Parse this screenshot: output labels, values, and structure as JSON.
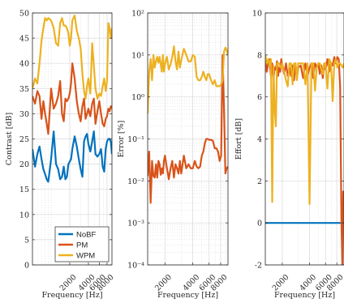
{
  "colors": {
    "NoBF": "#0072BD",
    "PM": "#D95319",
    "WPM": "#EDB120",
    "grid": "#d9d9d9",
    "axis": "#262626"
  },
  "chart_data": [
    {
      "type": "line",
      "ylabel": "Contrast [dB]",
      "xlabel": "Frequency [Hz]",
      "xscale": "log",
      "yscale": "linear",
      "xlim": [
        500,
        9600
      ],
      "ylim": [
        0,
        50
      ],
      "yticks": [
        0,
        5,
        10,
        15,
        20,
        25,
        30,
        35,
        40,
        45,
        50
      ],
      "yticklabels": [
        "0",
        "5",
        "10",
        "15",
        "20",
        "25",
        "30",
        "35",
        "40",
        "45",
        "50"
      ],
      "xticks": [
        2000,
        4000,
        6000,
        8000
      ],
      "xticklabels": [
        "2000",
        "4000",
        "6000",
        "8000"
      ],
      "grid": true,
      "legend": "bottom-right",
      "series": [
        {
          "name": "NoBF",
          "x": [
            500,
            550,
            600,
            650,
            700,
            750,
            800,
            850,
            900,
            1000,
            1100,
            1200,
            1300,
            1400,
            1500,
            1600,
            1700,
            1800,
            1900,
            2000,
            2100,
            2200,
            2400,
            2600,
            2800,
            3000,
            3200,
            3400,
            3600,
            3800,
            4000,
            4300,
            4600,
            4900,
            5200,
            5600,
            6000,
            6400,
            6800,
            7200,
            7600,
            8000,
            8400,
            8800,
            9200,
            9600
          ],
          "y": [
            23,
            19.5,
            22,
            23.5,
            21,
            19,
            18,
            17,
            16.5,
            21,
            26.5,
            20,
            19,
            17,
            17.5,
            19.5,
            17,
            17.5,
            20,
            20.5,
            21,
            23,
            25.5,
            23.5,
            21,
            19,
            17.5,
            24.5,
            25.5,
            26,
            24,
            22.5,
            24.5,
            26.5,
            22,
            21.5,
            22,
            23,
            19.5,
            18.5,
            23,
            24.5,
            25,
            25,
            24.5,
            22
          ]
        },
        {
          "name": "PM",
          "x": [
            500,
            550,
            600,
            650,
            700,
            750,
            800,
            850,
            900,
            1000,
            1100,
            1200,
            1300,
            1400,
            1500,
            1600,
            1700,
            1800,
            1900,
            2000,
            2100,
            2200,
            2400,
            2600,
            2800,
            3000,
            3200,
            3400,
            3600,
            3800,
            4000,
            4300,
            4600,
            4900,
            5200,
            5600,
            6000,
            6400,
            6800,
            7200,
            7600,
            8000,
            8400,
            8800,
            9200,
            9600
          ],
          "y": [
            33.5,
            32,
            34.5,
            33.5,
            29,
            32.5,
            30,
            28,
            26,
            35,
            31,
            32,
            33.5,
            36.5,
            30,
            28.5,
            33,
            32.5,
            33,
            34,
            36,
            40,
            37,
            32.5,
            30,
            28.5,
            31.5,
            33,
            29,
            30,
            31,
            29.5,
            32,
            33,
            28,
            30.5,
            32.5,
            30,
            28,
            27.5,
            29,
            29.5,
            31,
            30.5,
            31.5,
            31
          ]
        },
        {
          "name": "WPM",
          "x": [
            500,
            550,
            600,
            650,
            700,
            750,
            800,
            850,
            900,
            1000,
            1100,
            1200,
            1300,
            1400,
            1500,
            1600,
            1700,
            1800,
            1900,
            2000,
            2100,
            2200,
            2400,
            2600,
            2800,
            3000,
            3200,
            3400,
            3600,
            3800,
            4000,
            4300,
            4600,
            4900,
            5200,
            5600,
            6000,
            6400,
            6800,
            7200,
            7600,
            8000,
            8400,
            8800,
            9200,
            9600
          ],
          "y": [
            35,
            37,
            36,
            40,
            44.5,
            47,
            49,
            48.5,
            49,
            48.5,
            47,
            44,
            43.5,
            48,
            49,
            47.5,
            47.5,
            47,
            46,
            43.5,
            45,
            48.5,
            49.5,
            46.5,
            45,
            43,
            38,
            34.5,
            33,
            35.5,
            37,
            34,
            44,
            39.5,
            35,
            33,
            34,
            33.5,
            35.5,
            37,
            34.5,
            36.5,
            48,
            47,
            45,
            47
          ]
        }
      ]
    },
    {
      "type": "line",
      "ylabel": "Error [%]",
      "xlabel": "Frequency [Hz]",
      "xscale": "log",
      "yscale": "log",
      "xlim": [
        1300,
        9600
      ],
      "ylim": [
        0.0001,
        100
      ],
      "yticks": [
        0.0001,
        0.001,
        0.01,
        0.1,
        1,
        10,
        100
      ],
      "yticklabels": [
        "10⁻⁴",
        "10⁻³",
        "10⁻²",
        "10⁻¹",
        "10⁰",
        "10¹",
        "10²"
      ],
      "xticks": [
        2000,
        4000,
        6000,
        8000
      ],
      "xticklabels": [
        "2000",
        "4000",
        "6000",
        "8000"
      ],
      "grid": true,
      "series": [
        {
          "name": "PM",
          "x": [
            1300,
            1350,
            1400,
            1450,
            1500,
            1550,
            1600,
            1650,
            1700,
            1750,
            1800,
            1850,
            1900,
            1950,
            2000,
            2100,
            2200,
            2300,
            2400,
            2500,
            2600,
            2700,
            2800,
            2900,
            3000,
            3200,
            3400,
            3600,
            3800,
            4000,
            4200,
            4400,
            4600,
            4800,
            5000,
            5200,
            5400,
            5600,
            5800,
            6000,
            6300,
            6600,
            6900,
            7200,
            7500,
            7800,
            8100,
            8400,
            8700,
            9000,
            9300,
            9600
          ],
          "y": [
            0.013,
            0.05,
            0.003,
            0.03,
            0.013,
            0.012,
            0.025,
            0.012,
            0.03,
            0.025,
            0.014,
            0.02,
            0.015,
            0.03,
            0.04,
            0.02,
            0.011,
            0.02,
            0.03,
            0.012,
            0.025,
            0.02,
            0.015,
            0.03,
            0.015,
            0.04,
            0.02,
            0.025,
            0.02,
            0.02,
            0.03,
            0.022,
            0.02,
            0.022,
            0.04,
            0.05,
            0.08,
            0.1,
            0.1,
            0.095,
            0.095,
            0.09,
            0.06,
            0.06,
            0.05,
            0.03,
            0.04,
            10,
            0.5,
            0.015,
            0.02,
            0.022
          ]
        },
        {
          "name": "WPM",
          "x": [
            1300,
            1350,
            1400,
            1450,
            1500,
            1550,
            1600,
            1650,
            1700,
            1750,
            1800,
            1850,
            1900,
            1950,
            2000,
            2100,
            2200,
            2300,
            2400,
            2500,
            2600,
            2700,
            2800,
            2900,
            3000,
            3200,
            3400,
            3600,
            3800,
            4000,
            4200,
            4400,
            4600,
            4800,
            5000,
            5200,
            5400,
            5600,
            5800,
            6000,
            6300,
            6600,
            6900,
            7200,
            7500,
            7800,
            8100,
            8400,
            8700,
            9000,
            9300,
            9600
          ],
          "y": [
            0.4,
            4,
            8,
            2.5,
            10,
            5,
            7,
            9,
            6.5,
            9,
            6,
            4,
            10,
            4,
            6,
            9,
            4.5,
            6,
            9,
            16,
            7,
            4.5,
            12,
            5,
            7.5,
            14,
            10,
            7,
            7,
            10,
            9,
            3,
            2.5,
            2.5,
            3,
            4,
            3,
            2.5,
            3.5,
            3.5,
            2.5,
            2,
            2.5,
            1.8,
            1.8,
            1.8,
            2,
            2.5,
            12,
            15,
            13,
            10
          ]
        }
      ]
    },
    {
      "type": "line",
      "ylabel": "Effort [dB]",
      "xlabel": "Frequency [Hz]",
      "xscale": "log",
      "yscale": "linear",
      "xlim": [
        1300,
        9600
      ],
      "ylim": [
        -2,
        10
      ],
      "yticks": [
        -2,
        0,
        2,
        4,
        6,
        8,
        10
      ],
      "yticklabels": [
        "-2",
        "0",
        "2",
        "4",
        "6",
        "8",
        "10"
      ],
      "xticks": [
        2000,
        4000,
        6000,
        8000
      ],
      "xticklabels": [
        "2000",
        "4000",
        "6000",
        "8000"
      ],
      "grid": true,
      "series": [
        {
          "name": "NoBF",
          "x": [
            1300,
            9600
          ],
          "y": [
            0,
            0
          ]
        },
        {
          "name": "PM",
          "x": [
            1300,
            1350,
            1400,
            1450,
            1500,
            1550,
            1600,
            1650,
            1700,
            1750,
            1800,
            1850,
            1900,
            1950,
            2000,
            2100,
            2200,
            2300,
            2400,
            2500,
            2600,
            2700,
            2800,
            2900,
            3000,
            3200,
            3400,
            3600,
            3800,
            4000,
            4200,
            4400,
            4600,
            4800,
            5000,
            5200,
            5400,
            5600,
            5800,
            6000,
            6300,
            6600,
            6900,
            7200,
            7500,
            7800,
            8100,
            8400,
            8700,
            9000,
            9200,
            9400,
            9600
          ],
          "y": [
            7.8,
            7.2,
            7.6,
            7.8,
            7,
            7.6,
            6.8,
            7.4,
            7.3,
            7.7,
            7,
            7.4,
            7.2,
            7.8,
            7.5,
            7.1,
            7.6,
            7,
            7.4,
            7,
            7.5,
            6.8,
            7.6,
            6.9,
            7.4,
            7.5,
            6.9,
            7.6,
            7,
            7.4,
            7.6,
            6.9,
            7.6,
            7.4,
            7.6,
            7.1,
            7.5,
            6.9,
            7.6,
            7.3,
            7.8,
            7.2,
            7.6,
            7.5,
            7.9,
            7.6,
            7.9,
            7.8,
            6.5,
            0,
            -2,
            1.5,
            0.8
          ]
        },
        {
          "name": "WPM",
          "x": [
            1300,
            1350,
            1400,
            1450,
            1500,
            1550,
            1600,
            1650,
            1700,
            1750,
            1800,
            1850,
            1900,
            1950,
            2000,
            2100,
            2200,
            2300,
            2400,
            2500,
            2600,
            2700,
            2800,
            2900,
            3000,
            3200,
            3400,
            3600,
            3800,
            4000,
            4200,
            4400,
            4600,
            4800,
            5000,
            5200,
            5400,
            5600,
            5800,
            6000,
            6300,
            6600,
            6900,
            7200,
            7500,
            7800,
            8100,
            8400,
            8700,
            9000,
            9300,
            9600
          ],
          "y": [
            8,
            7.6,
            7.8,
            7.5,
            7.8,
            1,
            7.5,
            5.4,
            4.6,
            7.6,
            7.6,
            7.6,
            7.4,
            7.4,
            7.6,
            7.2,
            6.8,
            6.5,
            7.6,
            7.6,
            6.6,
            7.6,
            7.6,
            6.8,
            7.6,
            7.6,
            7.6,
            6.6,
            7.6,
            0.9,
            7.6,
            7.6,
            6.3,
            7.4,
            7.6,
            7.6,
            7.3,
            7.1,
            7.6,
            7.6,
            6.4,
            7.8,
            7.6,
            5.8,
            7.6,
            7.8,
            7.4,
            7.6,
            7.6,
            7.5,
            7.4,
            7.6
          ]
        }
      ]
    }
  ]
}
